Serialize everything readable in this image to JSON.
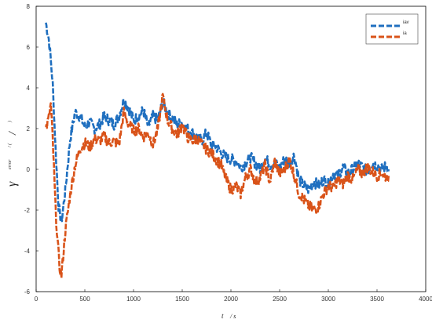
{
  "chart_data": {
    "type": "line",
    "xlabel_parts": [
      "t",
      "/ s"
    ],
    "ylabel_parts": [
      "γ",
      "error",
      "/ (",
      "/",
      ")"
    ],
    "xlim": [
      0,
      4000
    ],
    "ylim": [
      -6,
      8
    ],
    "xticks": [
      0,
      500,
      1000,
      1500,
      2000,
      2500,
      3000,
      3500,
      4000
    ],
    "yticks": [
      -6,
      -4,
      -2,
      0,
      2,
      4,
      6,
      8
    ],
    "grid": false,
    "legend_position": "top-right",
    "series": [
      {
        "name": "iav",
        "color": "#1f6fbf",
        "x": [
          100,
          130,
          150,
          170,
          200,
          230,
          260,
          300,
          350,
          400,
          450,
          500,
          550,
          600,
          650,
          700,
          750,
          800,
          850,
          900,
          950,
          1000,
          1050,
          1100,
          1150,
          1200,
          1250,
          1300,
          1350,
          1400,
          1450,
          1500,
          1550,
          1600,
          1650,
          1700,
          1750,
          1800,
          1850,
          1900,
          1950,
          2000,
          2050,
          2100,
          2150,
          2200,
          2250,
          2300,
          2350,
          2400,
          2450,
          2500,
          2550,
          2600,
          2650,
          2700,
          2750,
          2800,
          2850,
          2900,
          2950,
          3000,
          3050,
          3100,
          3150,
          3200,
          3250,
          3300,
          3350,
          3400,
          3450,
          3500,
          3550,
          3600,
          3620
        ],
        "values": [
          7.2,
          6.4,
          5.4,
          4.2,
          1.0,
          -1.8,
          -2.6,
          -1.0,
          1.5,
          2.8,
          2.6,
          2.1,
          2.3,
          2.0,
          2.2,
          2.6,
          2.4,
          2.2,
          2.6,
          3.4,
          3.0,
          2.4,
          2.6,
          2.9,
          2.1,
          2.6,
          2.4,
          3.3,
          2.8,
          2.5,
          2.2,
          2.3,
          2.0,
          1.8,
          1.6,
          1.4,
          1.8,
          1.2,
          1.1,
          0.8,
          0.6,
          0.5,
          0.4,
          0.1,
          0.3,
          0.6,
          0.3,
          0.0,
          0.6,
          0.2,
          0.3,
          0.1,
          0.5,
          0.3,
          0.7,
          -0.5,
          -0.8,
          -1.0,
          -0.6,
          -0.8,
          -0.5,
          -0.7,
          -0.2,
          -0.3,
          0.1,
          -0.2,
          0.0,
          0.3,
          0.1,
          -0.1,
          0.3,
          0.2,
          0.0,
          0.2,
          0.0
        ]
      },
      {
        "name": "ia",
        "color": "#d95319",
        "x": [
          100,
          130,
          150,
          170,
          200,
          220,
          240,
          260,
          300,
          350,
          400,
          450,
          500,
          550,
          600,
          650,
          700,
          750,
          800,
          850,
          900,
          950,
          1000,
          1050,
          1100,
          1150,
          1200,
          1250,
          1300,
          1350,
          1400,
          1450,
          1500,
          1550,
          1600,
          1650,
          1700,
          1750,
          1800,
          1850,
          1900,
          1950,
          2000,
          2050,
          2100,
          2150,
          2200,
          2250,
          2300,
          2350,
          2400,
          2450,
          2500,
          2550,
          2600,
          2650,
          2700,
          2750,
          2800,
          2850,
          2900,
          2950,
          3000,
          3050,
          3100,
          3150,
          3200,
          3250,
          3300,
          3350,
          3400,
          3450,
          3500,
          3550,
          3600,
          3620
        ],
        "values": [
          2.0,
          2.5,
          3.2,
          1.5,
          -2.0,
          -3.5,
          -4.8,
          -5.2,
          -3.0,
          -1.2,
          0.2,
          1.0,
          1.3,
          1.1,
          1.5,
          1.4,
          1.6,
          1.3,
          1.4,
          1.2,
          2.8,
          2.2,
          1.9,
          2.0,
          1.6,
          1.8,
          1.2,
          2.0,
          3.6,
          2.4,
          2.0,
          1.7,
          2.2,
          1.6,
          1.4,
          1.5,
          1.2,
          1.0,
          0.8,
          0.5,
          0.2,
          -0.5,
          -1.0,
          -0.8,
          -1.2,
          -0.4,
          0.0,
          -0.6,
          -0.4,
          0.2,
          -0.6,
          0.4,
          -0.2,
          0.0,
          0.5,
          -0.3,
          -1.2,
          -1.5,
          -1.8,
          -2.0,
          -1.8,
          -1.2,
          -0.8,
          -0.9,
          -0.5,
          -0.7,
          -0.3,
          -0.5,
          0.0,
          -0.2,
          0.1,
          -0.1,
          -0.3,
          -0.2,
          -0.4,
          -0.3
        ]
      }
    ]
  }
}
